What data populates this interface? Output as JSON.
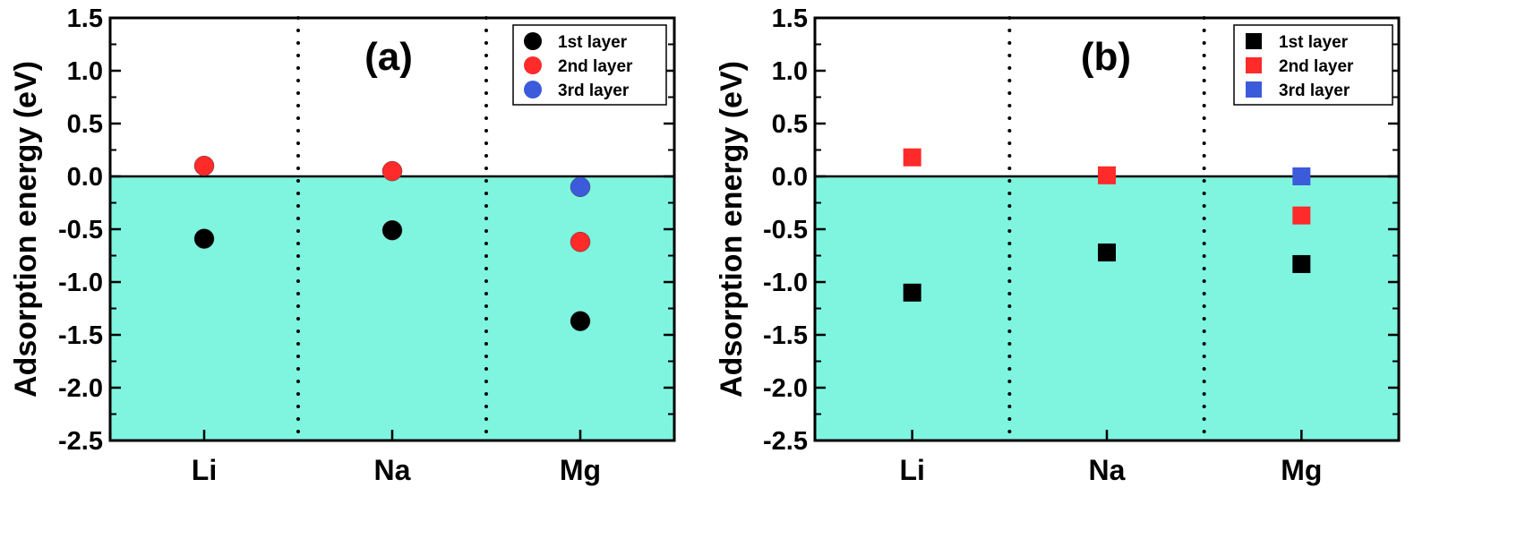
{
  "chart_data": [
    {
      "type": "scatter",
      "panel_label": "(a)",
      "marker": "circle",
      "ylabel": "Adsorption energy (eV)",
      "ylim": [
        -2.5,
        1.5
      ],
      "yticks": [
        "1.5",
        "1.0",
        "0.5",
        "0.0",
        "-0.5",
        "-1.0",
        "-1.5",
        "-2.0",
        "-2.5"
      ],
      "categories": [
        "Li",
        "Na",
        "Mg"
      ],
      "shaded_region": {
        "from": -2.5,
        "to": 0.0,
        "color": "#7ff5e0"
      },
      "legend_position": "top-right",
      "series": [
        {
          "name": "1st layer",
          "color": "#000000",
          "values": [
            -0.59,
            -0.51,
            -1.37
          ]
        },
        {
          "name": "2nd layer",
          "color": "#ff2a2a",
          "values": [
            0.1,
            0.05,
            -0.62
          ]
        },
        {
          "name": "3rd layer",
          "color": "#3b5bdb",
          "values": [
            null,
            null,
            -0.1
          ]
        }
      ]
    },
    {
      "type": "scatter",
      "panel_label": "(b)",
      "marker": "square",
      "ylabel": "Adsorption energy (eV)",
      "ylim": [
        -2.5,
        1.5
      ],
      "yticks": [
        "1.5",
        "1.0",
        "0.5",
        "0.0",
        "-0.5",
        "-1.0",
        "-1.5",
        "-2.0",
        "-2.5"
      ],
      "categories": [
        "Li",
        "Na",
        "Mg"
      ],
      "shaded_region": {
        "from": -2.5,
        "to": 0.0,
        "color": "#7ff5e0"
      },
      "legend_position": "top-right",
      "series": [
        {
          "name": "1st layer",
          "color": "#000000",
          "values": [
            -1.1,
            -0.72,
            -0.83
          ]
        },
        {
          "name": "2nd layer",
          "color": "#ff2a2a",
          "values": [
            0.18,
            0.01,
            -0.37
          ]
        },
        {
          "name": "3rd layer",
          "color": "#3b5bdb",
          "values": [
            null,
            null,
            0.0
          ]
        }
      ]
    }
  ]
}
